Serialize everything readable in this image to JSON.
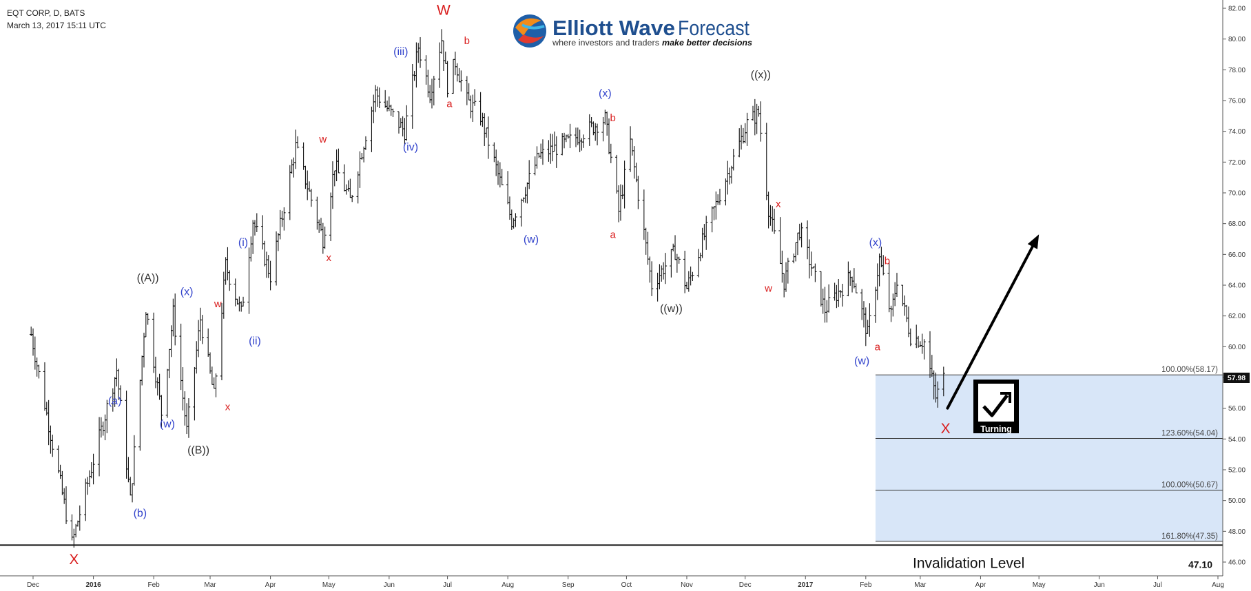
{
  "header": {
    "symbol_line": "EQT CORP, D, BATS",
    "date_line": "March 13, 2017 15:11 UTC"
  },
  "logo": {
    "brand_bold": "Elliott Wave",
    "brand_light": "Forecast",
    "tagline_plain": "where investors and traders",
    "tagline_bold": "make better decisions"
  },
  "chart_data": {
    "type": "ohlc",
    "title": "EQT CORP, D, BATS",
    "ylim": [
      45,
      82.5
    ],
    "y_ticks": [
      "46.00",
      "48.00",
      "50.00",
      "52.00",
      "54.00",
      "56.00",
      "58.00",
      "60.00",
      "62.00",
      "64.00",
      "66.00",
      "68.00",
      "70.00",
      "72.00",
      "74.00",
      "76.00",
      "78.00",
      "80.00",
      "82.00"
    ],
    "x_ticks": [
      "Dec",
      "2016",
      "Feb",
      "Mar",
      "Apr",
      "May",
      "Jun",
      "Jul",
      "Aug",
      "Sep",
      "Oct",
      "Nov",
      "Dec",
      "2017",
      "Feb",
      "Mar",
      "Apr",
      "May",
      "Jun",
      "Jul",
      "Aug"
    ],
    "last_price": "57.98",
    "price_path_dates": [
      "2015-11-30",
      "2015-12-21",
      "2016-01-13",
      "2016-01-20",
      "2016-01-28",
      "2016-02-05",
      "2016-02-11",
      "2016-02-18",
      "2016-02-25",
      "2016-03-03",
      "2016-03-09",
      "2016-03-17",
      "2016-03-23",
      "2016-04-01",
      "2016-04-14",
      "2016-04-28",
      "2016-05-04",
      "2016-05-12",
      "2016-05-25",
      "2016-06-09",
      "2016-06-16",
      "2016-06-22",
      "2016-06-28",
      "2016-07-01",
      "2016-07-05",
      "2016-07-11",
      "2016-07-18",
      "2016-08-03",
      "2016-08-17",
      "2016-09-01",
      "2016-09-20",
      "2016-09-27",
      "2016-10-03",
      "2016-10-14",
      "2016-10-26",
      "2016-11-01",
      "2016-11-10",
      "2016-11-20",
      "2016-12-02",
      "2016-12-08",
      "2016-12-13",
      "2016-12-21",
      "2016-12-29",
      "2017-01-11",
      "2017-01-25",
      "2017-02-02",
      "2017-02-08",
      "2017-02-14",
      "2017-02-17",
      "2017-02-24",
      "2017-03-03",
      "2017-03-09",
      "2017-03-13"
    ],
    "price_path_values": [
      60.8,
      47.2,
      58.5,
      50.0,
      62.5,
      55.7,
      62.2,
      54.5,
      61.8,
      56.8,
      65.3,
      62.2,
      68.2,
      64.6,
      73.0,
      67.0,
      71.8,
      69.5,
      76.5,
      74.0,
      79.5,
      76.5,
      80.0,
      77.0,
      78.5,
      76.0,
      75.0,
      68.2,
      72.4,
      73.3,
      74.8,
      68.8,
      73.3,
      64.0,
      66.2,
      63.8,
      67.2,
      70.6,
      74.5,
      75.2,
      69.0,
      64.2,
      67.6,
      62.4,
      64.7,
      60.8,
      65.7,
      62.0,
      64.4,
      60.7,
      60.3,
      56.7,
      57.98
    ],
    "wave_labels": [
      {
        "text": "X",
        "date": "2015-12-22",
        "price": 46.2,
        "color": "#d91e1e",
        "size": "big"
      },
      {
        "text": "(a)",
        "date": "2016-01-12",
        "price": 56.5,
        "color": "#3344cc",
        "size": "normal"
      },
      {
        "text": "(b)",
        "date": "2016-01-25",
        "price": 49.2,
        "color": "#3344cc",
        "size": "normal"
      },
      {
        "text": "((A))",
        "date": "2016-01-29",
        "price": 64.5,
        "color": "#333333",
        "size": "normal"
      },
      {
        "text": "(w)",
        "date": "2016-02-08",
        "price": 55.0,
        "color": "#3344cc",
        "size": "normal"
      },
      {
        "text": "(x)",
        "date": "2016-02-18",
        "price": 63.6,
        "color": "#3344cc",
        "size": "normal"
      },
      {
        "text": "((B))",
        "date": "2016-02-24",
        "price": 53.3,
        "color": "#333333",
        "size": "normal"
      },
      {
        "text": "w",
        "date": "2016-03-05",
        "price": 62.8,
        "color": "#d91e1e",
        "size": "small"
      },
      {
        "text": "x",
        "date": "2016-03-10",
        "price": 56.1,
        "color": "#d91e1e",
        "size": "small"
      },
      {
        "text": "(i)",
        "date": "2016-03-18",
        "price": 66.8,
        "color": "#3344cc",
        "size": "normal"
      },
      {
        "text": "(ii)",
        "date": "2016-03-24",
        "price": 60.4,
        "color": "#3344cc",
        "size": "normal"
      },
      {
        "text": "w",
        "date": "2016-04-28",
        "price": 73.5,
        "color": "#d91e1e",
        "size": "small"
      },
      {
        "text": "x",
        "date": "2016-05-01",
        "price": 65.8,
        "color": "#d91e1e",
        "size": "small"
      },
      {
        "text": "(iii)",
        "date": "2016-06-07",
        "price": 79.2,
        "color": "#3344cc",
        "size": "normal"
      },
      {
        "text": "(iv)",
        "date": "2016-06-12",
        "price": 73.0,
        "color": "#3344cc",
        "size": "normal"
      },
      {
        "text": "W",
        "date": "2016-06-29",
        "price": 81.9,
        "color": "#d91e1e",
        "size": "big"
      },
      {
        "text": "a",
        "date": "2016-07-02",
        "price": 75.8,
        "color": "#d91e1e",
        "size": "small"
      },
      {
        "text": "b",
        "date": "2016-07-11",
        "price": 79.9,
        "color": "#d91e1e",
        "size": "small"
      },
      {
        "text": "(w)",
        "date": "2016-08-13",
        "price": 67.0,
        "color": "#3344cc",
        "size": "normal"
      },
      {
        "text": "(x)",
        "date": "2016-09-20",
        "price": 76.5,
        "color": "#3344cc",
        "size": "normal"
      },
      {
        "text": "b",
        "date": "2016-09-24",
        "price": 74.9,
        "color": "#d91e1e",
        "size": "small"
      },
      {
        "text": "a",
        "date": "2016-09-24",
        "price": 67.3,
        "color": "#d91e1e",
        "size": "small"
      },
      {
        "text": "((w))",
        "date": "2016-10-24",
        "price": 62.5,
        "color": "#333333",
        "size": "normal"
      },
      {
        "text": "((x))",
        "date": "2016-12-09",
        "price": 77.7,
        "color": "#333333",
        "size": "normal"
      },
      {
        "text": "x",
        "date": "2016-12-18",
        "price": 69.3,
        "color": "#d91e1e",
        "size": "small"
      },
      {
        "text": "w",
        "date": "2016-12-13",
        "price": 63.8,
        "color": "#d91e1e",
        "size": "small"
      },
      {
        "text": "(x)",
        "date": "2017-02-06",
        "price": 66.8,
        "color": "#3344cc",
        "size": "normal"
      },
      {
        "text": "b",
        "date": "2017-02-12",
        "price": 65.6,
        "color": "#d91e1e",
        "size": "small"
      },
      {
        "text": "a",
        "date": "2017-02-07",
        "price": 60.0,
        "color": "#d91e1e",
        "size": "small"
      },
      {
        "text": "(w)",
        "date": "2017-01-30",
        "price": 59.1,
        "color": "#3344cc",
        "size": "normal"
      },
      {
        "text": "X",
        "date": "2017-03-14",
        "price": 54.7,
        "color": "#d91e1e",
        "size": "big"
      }
    ],
    "fib_zone": {
      "start_date": "2017-02-06",
      "levels": [
        {
          "label": "100.00%(58.17)",
          "price": 58.17
        },
        {
          "label": "123.60%(54.04)",
          "price": 54.04
        },
        {
          "label": "100.00%(50.67)",
          "price": 50.67
        },
        {
          "label": "161.80%(47.35)",
          "price": 47.35
        }
      ]
    },
    "invalidation": {
      "label": "Invalidation Level",
      "price": 47.1,
      "value_text": "47.10"
    },
    "arrow": {
      "from_date": "2017-03-15",
      "from_price": 56.0,
      "to_date": "2017-05-01",
      "to_price": 67.3
    },
    "badge": {
      "text": "Turning"
    }
  }
}
